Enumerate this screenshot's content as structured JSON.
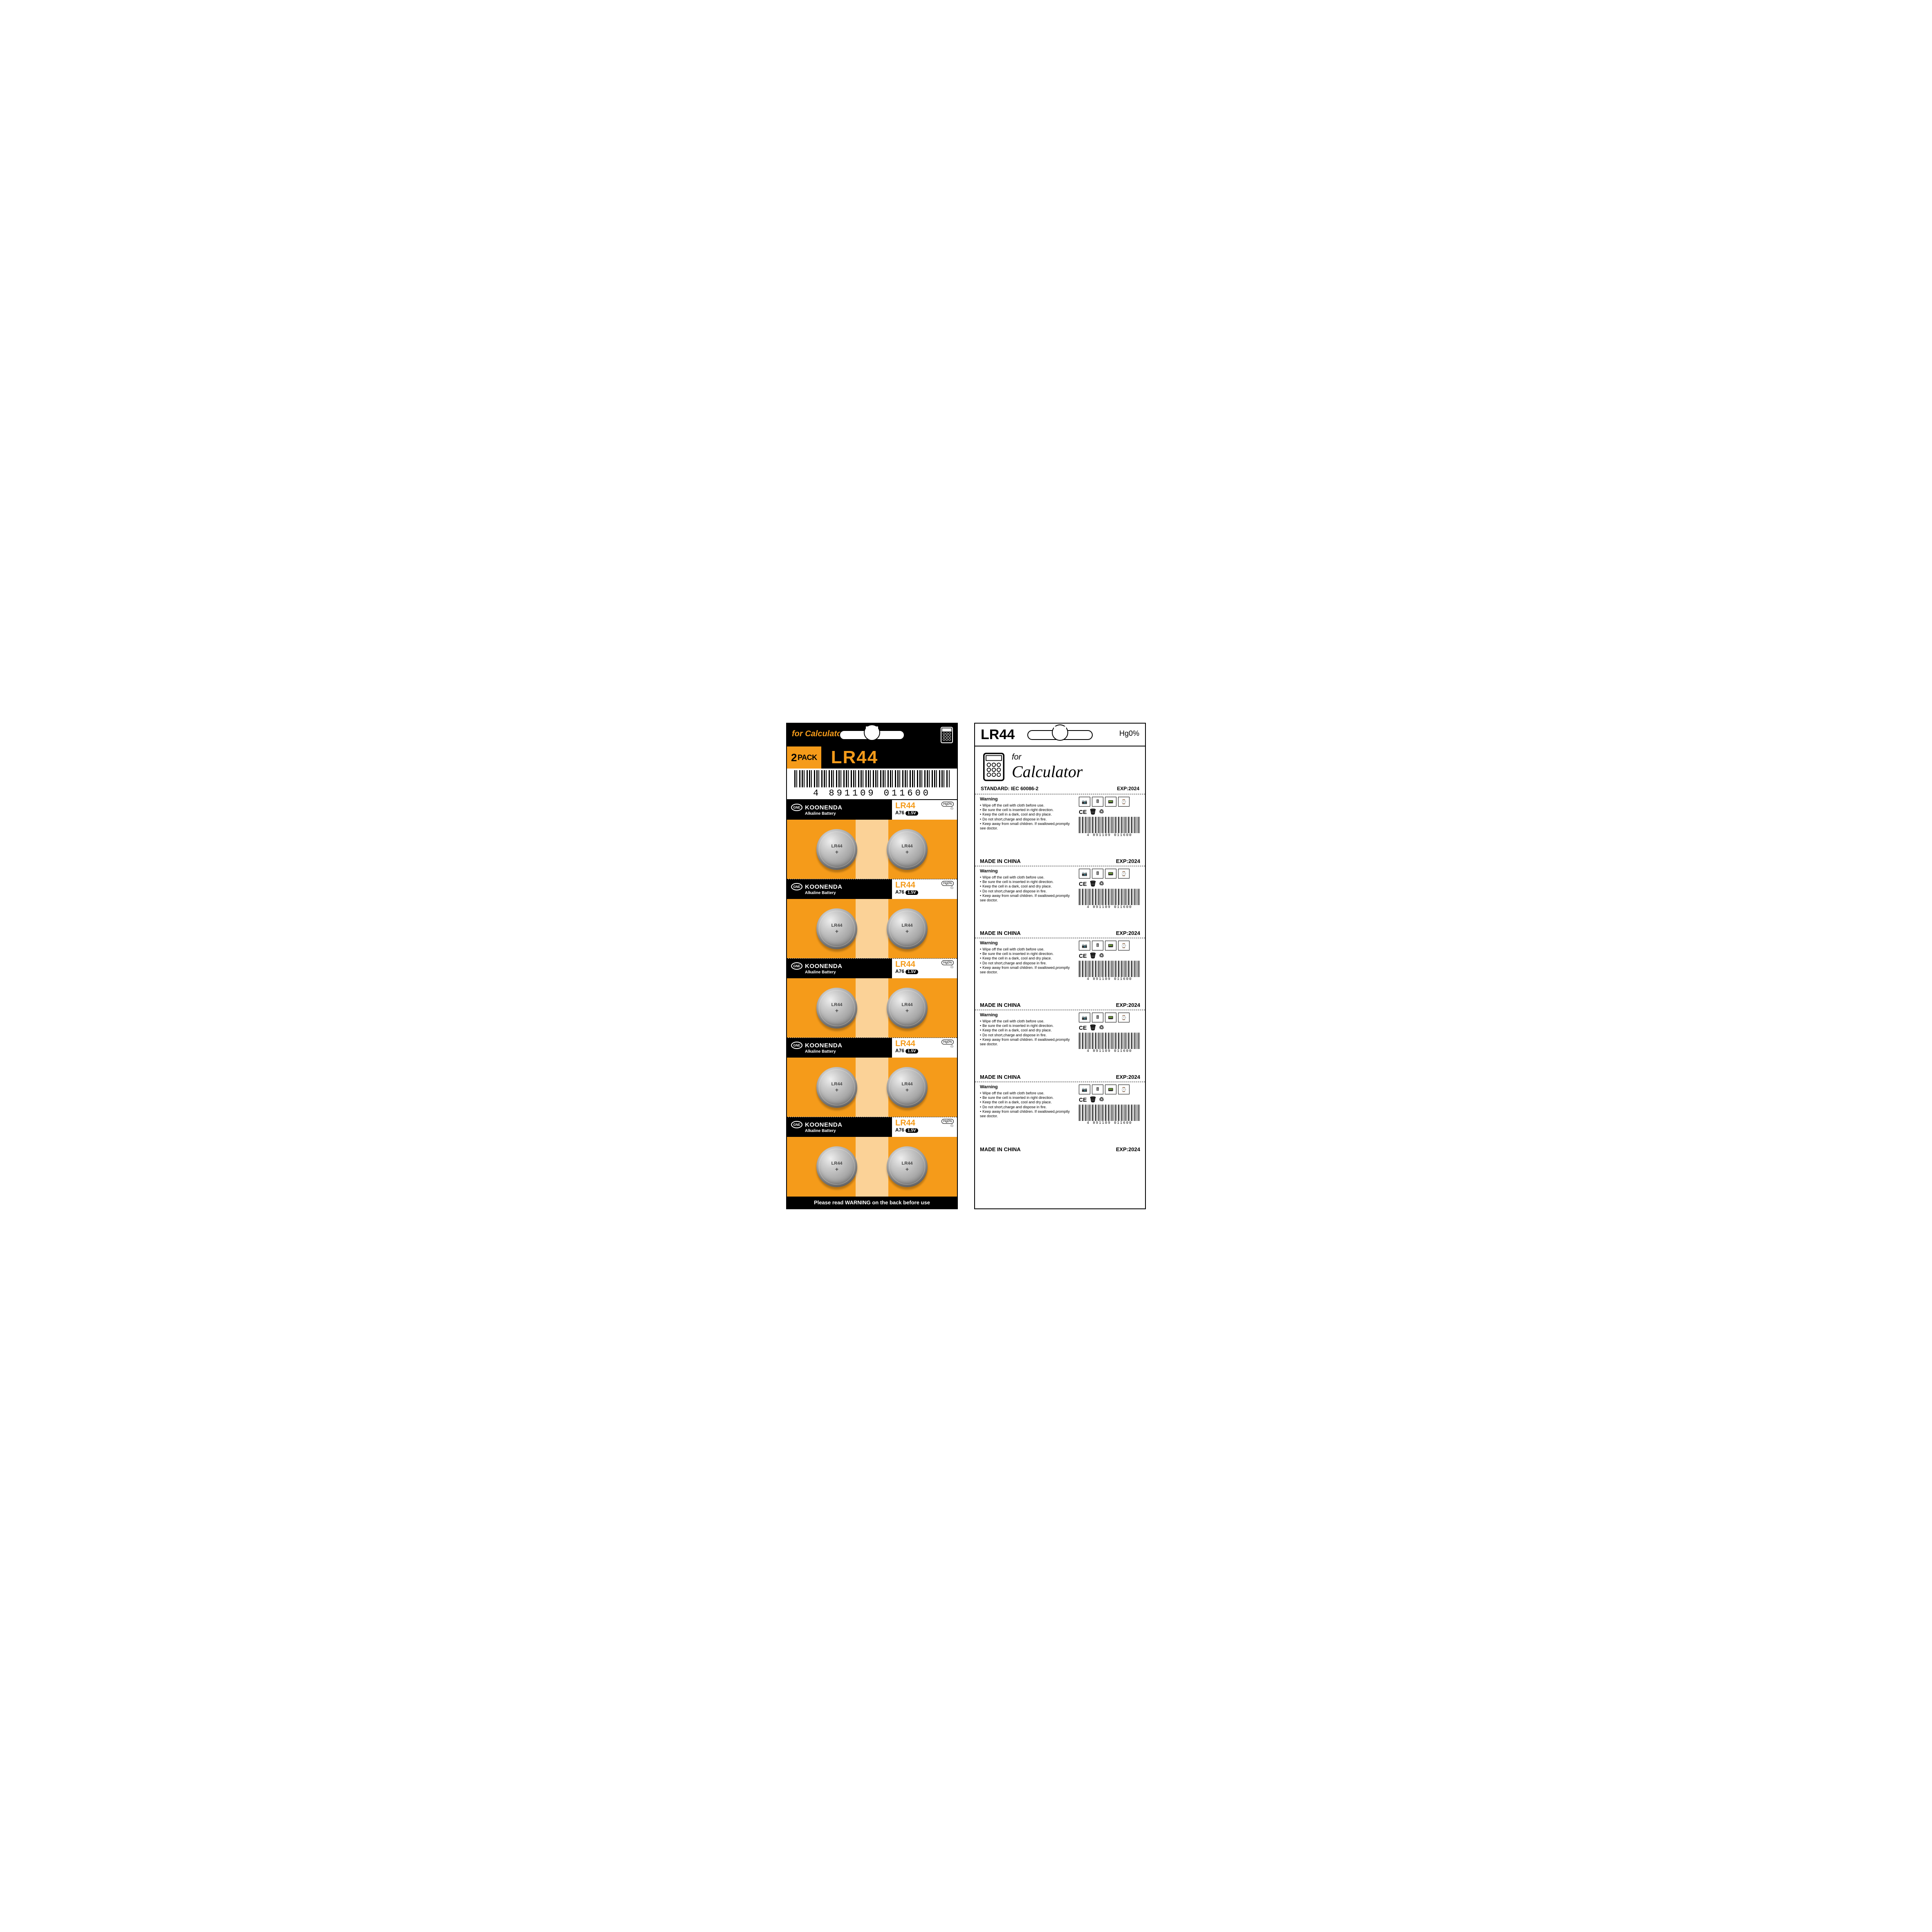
{
  "colors": {
    "orange": "#f59b1a",
    "black": "#000000",
    "white": "#ffffff"
  },
  "front": {
    "for_text": "for Calculator",
    "pack_count": "2",
    "pack_label": "PACK",
    "product": "LR44",
    "barcode": "4 891109 011600",
    "footer": "Please read WARNING on the back before use",
    "cell": {
      "brand": "KOONENDA",
      "brand_sub": "Alkaline Battery",
      "model": "LR44",
      "alt_model": "A76",
      "voltage": "1.5V",
      "hg": "Hg0%",
      "battery_label": "LR44"
    },
    "cells_count": 5
  },
  "back": {
    "title": "LR44",
    "hg": "Hg0%",
    "for": "for",
    "for_word": "Calculator",
    "standard": "STANDARD: IEC 60086-2",
    "exp": "EXP:2024",
    "warning_title": "Warning",
    "warnings": [
      "Wipe off the cell with cloth before use.",
      "Be sure the cell is inserted in right direction.",
      "Keep the cell in a dark, cool and dry place.",
      "Do not short,charge and dispose in fire.",
      "Keep away from small children. If swallowed,promptly see doctor."
    ],
    "cert_ce": "CE",
    "barcode": "4 891109 011600",
    "made_in": "MADE IN CHINA",
    "cells_count": 5
  }
}
